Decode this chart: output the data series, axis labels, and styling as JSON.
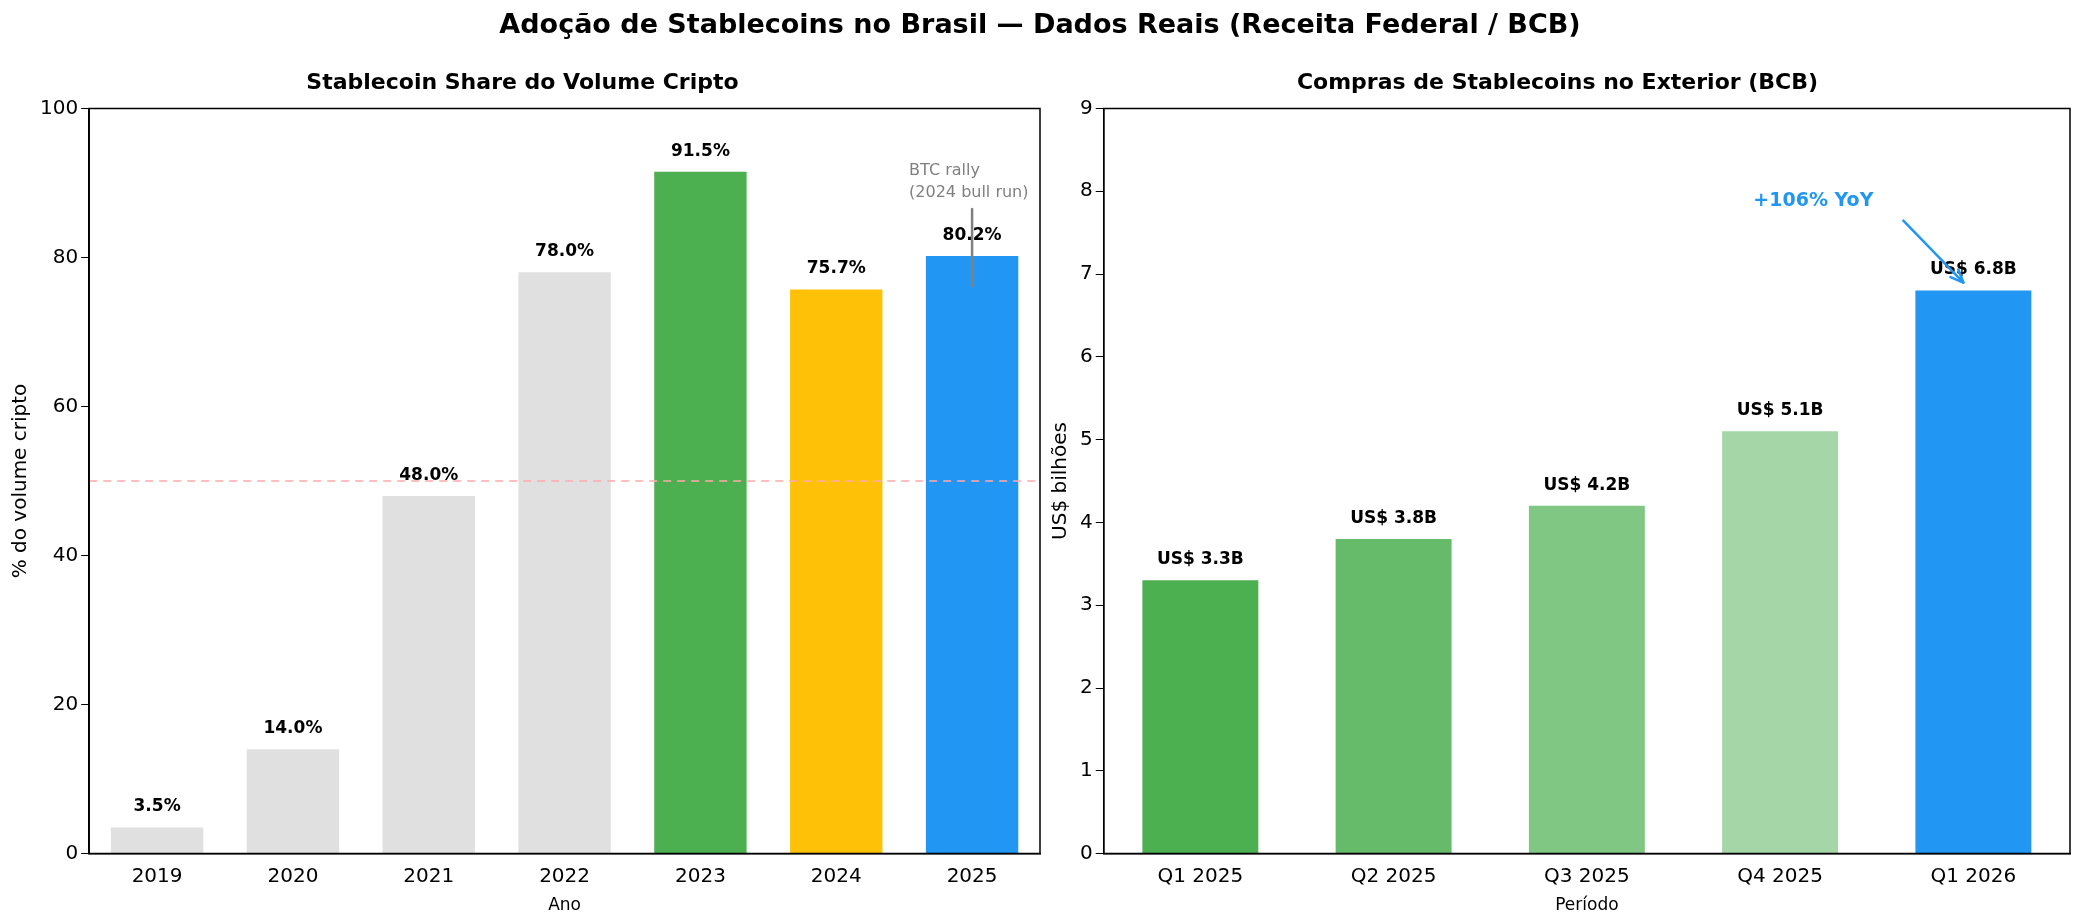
{
  "chart_data": [
    {
      "type": "bar",
      "title": "Stablecoin Share do Volume Cripto",
      "xlabel": "Ano",
      "ylabel": "% do volume cripto",
      "categories": [
        "2019",
        "2020",
        "2021",
        "2022",
        "2023",
        "2024",
        "2025"
      ],
      "values": [
        3.5,
        14.0,
        48.0,
        78.0,
        91.5,
        75.7,
        80.2
      ],
      "colors": [
        "#e0e0e0",
        "#e0e0e0",
        "#e0e0e0",
        "#e0e0e0",
        "#4caf50",
        "#ffc107",
        "#2196f3"
      ],
      "value_labels": [
        "3.5%",
        "14.0%",
        "48.0%",
        "78.0%",
        "91.5%",
        "75.7%",
        "80.2%"
      ],
      "ylim": [
        0,
        100
      ],
      "yticks": [
        0,
        20,
        40,
        60,
        80,
        100
      ],
      "grid": false,
      "legend": false,
      "ref_lines": [
        {
          "axis": "y",
          "value": 50,
          "color": "#ffaaaa",
          "line_style": "dashed"
        }
      ],
      "annotations": [
        "Adoção de Stablecoins no Brasil — Dados Reais (Receita Federal / BCB)",
        "BTC rally\n(2024 bull run)"
      ]
    },
    {
      "type": "bar",
      "title": "Compras de Stablecoins no Exterior (BCB)",
      "xlabel": "Período",
      "ylabel": "US$ bilhões",
      "categories": [
        "Q1 2025",
        "Q2 2025",
        "Q3 2025",
        "Q4 2025",
        "Q1 2026"
      ],
      "values": [
        3.3,
        3.8,
        4.2,
        5.1,
        6.8
      ],
      "colors": [
        "#4caf50",
        "#66bb6a",
        "#81c784",
        "#a5d6a7",
        "#2196f3"
      ],
      "value_labels": [
        "US$ 3.3B",
        "US$ 3.8B",
        "US$ 4.2B",
        "US$ 5.1B",
        "US$ 6.8B"
      ],
      "ylim": [
        0,
        9
      ],
      "yticks": [
        0,
        1,
        2,
        3,
        4,
        5,
        6,
        7,
        8,
        9
      ],
      "grid": false,
      "legend": false,
      "annotations": [
        "+106% YoY"
      ]
    }
  ]
}
